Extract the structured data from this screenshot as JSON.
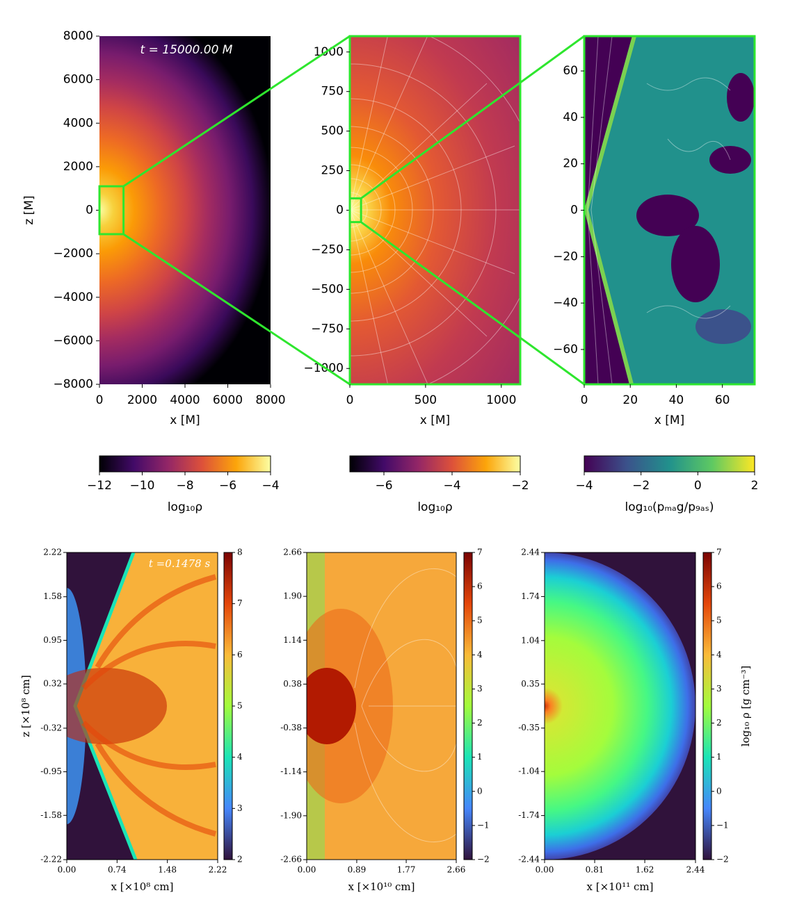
{
  "chart_data": [
    {
      "type": "heatmap",
      "annotation": "t = 15000.00 M",
      "xlabel": "x [M]",
      "ylabel": "z [M]",
      "xlim": [
        0,
        8000
      ],
      "ylim": [
        -8000,
        8000
      ],
      "xticks": [
        0,
        2000,
        4000,
        6000,
        8000
      ],
      "yticks": [
        {
          "value": -8000,
          "label": "−8000"
        },
        {
          "value": -6000,
          "label": "−6000"
        },
        {
          "value": -4000,
          "label": "−4000"
        },
        {
          "value": -2000,
          "label": "−2000"
        },
        0,
        2000,
        4000,
        6000,
        8000
      ],
      "colorbar": {
        "label": "log₁₀ρ",
        "colormap": "inferno",
        "lim": [
          -12,
          -4
        ],
        "ticks": [
          {
            "value": -12,
            "label": "−12"
          },
          {
            "value": -10,
            "label": "−10"
          },
          {
            "value": -8,
            "label": "−8"
          },
          {
            "value": -6,
            "label": "−6"
          },
          {
            "value": -4,
            "label": "−4"
          }
        ]
      }
    },
    {
      "type": "heatmap",
      "xlabel": "x [M]",
      "xlim": [
        0,
        1125
      ],
      "ylim": [
        -1100,
        1100
      ],
      "xticks": [
        0,
        500,
        1000
      ],
      "yticks": [
        {
          "value": -1000,
          "label": "−1000"
        },
        {
          "value": -750,
          "label": "−750"
        },
        {
          "value": -500,
          "label": "−500"
        },
        {
          "value": -250,
          "label": "−250"
        },
        0,
        250,
        500,
        750,
        1000
      ],
      "colorbar": {
        "label": "log₁₀ρ",
        "colormap": "inferno",
        "lim": [
          -7,
          -2
        ],
        "ticks": [
          {
            "value": -6,
            "label": "−6"
          },
          {
            "value": -4,
            "label": "−4"
          },
          {
            "value": -2,
            "label": "−2"
          }
        ]
      }
    },
    {
      "type": "heatmap",
      "xlabel": "x [M]",
      "xlim": [
        0,
        74
      ],
      "ylim": [
        -75,
        75
      ],
      "xticks": [
        0,
        20,
        40,
        60
      ],
      "yticks": [
        {
          "value": -60,
          "label": "−60"
        },
        {
          "value": -40,
          "label": "−40"
        },
        {
          "value": -20,
          "label": "−20"
        },
        0,
        20,
        40,
        60
      ],
      "colorbar": {
        "label": "log₁₀(pₘₐg/p₉ₐₛ)",
        "colormap": "viridis",
        "lim": [
          -4,
          2
        ],
        "ticks": [
          {
            "value": -4,
            "label": "−4"
          },
          {
            "value": -2,
            "label": "−2"
          },
          0,
          2
        ]
      }
    },
    {
      "type": "heatmap",
      "annotation": "t =0.1478 s",
      "xlabel": "x [×10⁸ cm]",
      "ylabel": "z [×10⁸ cm]",
      "xlim": [
        0,
        2.22
      ],
      "ylim": [
        -2.22,
        2.22
      ],
      "xticks": [
        {
          "value": 0,
          "label": "0.00"
        },
        0.74,
        1.48,
        2.22
      ],
      "yticks": [
        -2.22,
        -1.58,
        -0.95,
        -0.32,
        0.32,
        0.95,
        1.58,
        2.22
      ],
      "colorbar": {
        "colormap": "turbo",
        "lim": [
          2,
          8
        ],
        "ticks": [
          2,
          3,
          4,
          5,
          6,
          7,
          8
        ]
      }
    },
    {
      "type": "heatmap",
      "xlabel": "x [×10¹⁰ cm]",
      "xlim": [
        0,
        2.66
      ],
      "ylim": [
        -2.66,
        2.66
      ],
      "xticks": [
        {
          "value": 0,
          "label": "0.00"
        },
        0.89,
        1.77,
        2.66
      ],
      "yticks": [
        -2.66,
        {
          "value": -1.9,
          "label": "-1.90"
        },
        -1.14,
        -0.38,
        0.38,
        1.14,
        {
          "value": 1.9,
          "label": "1.90"
        },
        2.66
      ],
      "colorbar": {
        "colormap": "turbo",
        "lim": [
          -2,
          7
        ],
        "ticks": [
          {
            "value": -2,
            "label": "−2"
          },
          {
            "value": -1,
            "label": "−1"
          },
          0,
          1,
          2,
          3,
          4,
          5,
          6,
          7
        ]
      }
    },
    {
      "type": "heatmap",
      "xlabel": "x [×10¹¹ cm]",
      "xlim": [
        0,
        2.44
      ],
      "ylim": [
        -2.44,
        2.44
      ],
      "xticks": [
        {
          "value": 0,
          "label": "0.00"
        },
        0.81,
        1.62,
        2.44
      ],
      "yticks": [
        -2.44,
        -1.74,
        -1.04,
        -0.35,
        0.35,
        1.04,
        1.74,
        2.44
      ],
      "colorbar": {
        "label": "log₁₀ ρ [g cm⁻³]",
        "colormap": "turbo",
        "lim": [
          -2,
          7
        ],
        "ticks": [
          {
            "value": -2,
            "label": "−2"
          },
          {
            "value": -1,
            "label": "−1"
          },
          0,
          1,
          2,
          3,
          4,
          5,
          6,
          7
        ]
      }
    }
  ]
}
